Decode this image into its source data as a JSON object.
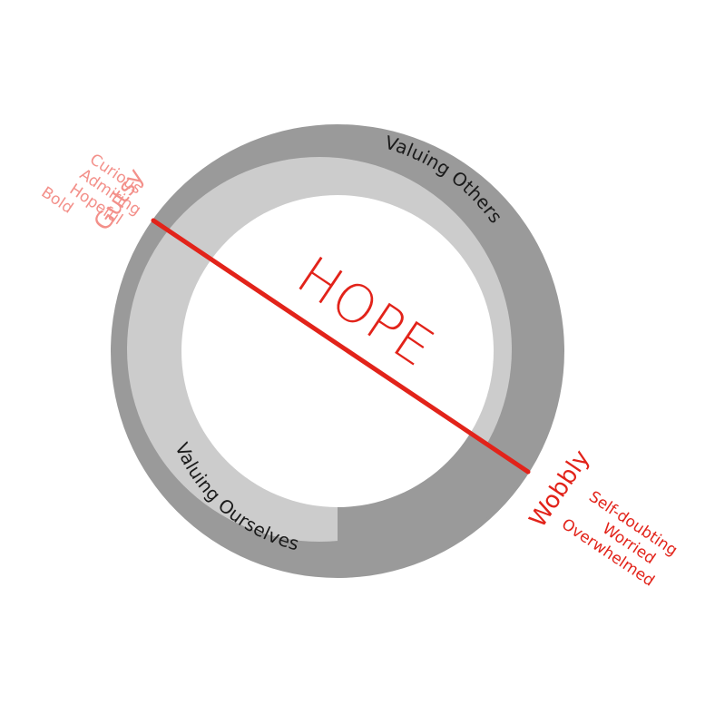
{
  "diagram": {
    "center_label": "HOPE",
    "ring_labels": {
      "top": "Valuing Others",
      "bottom": "Valuing Ourselves"
    },
    "gutsy": {
      "label": "Gutsy",
      "items": [
        "Curious",
        "Admiring",
        "Hopeful",
        "Bold"
      ]
    },
    "wobbly": {
      "label": "Wobbly",
      "items": [
        "Self-doubting",
        "Worried",
        "Overwhelmed"
      ]
    },
    "colors": {
      "outer_ring": "#9a9a9a",
      "inner_ring": "#cccccc",
      "center": "#ffffff",
      "hope_line": "#e2231a",
      "gutsy_text": "#f3908a",
      "wobbly_text": "#e2231a"
    }
  }
}
